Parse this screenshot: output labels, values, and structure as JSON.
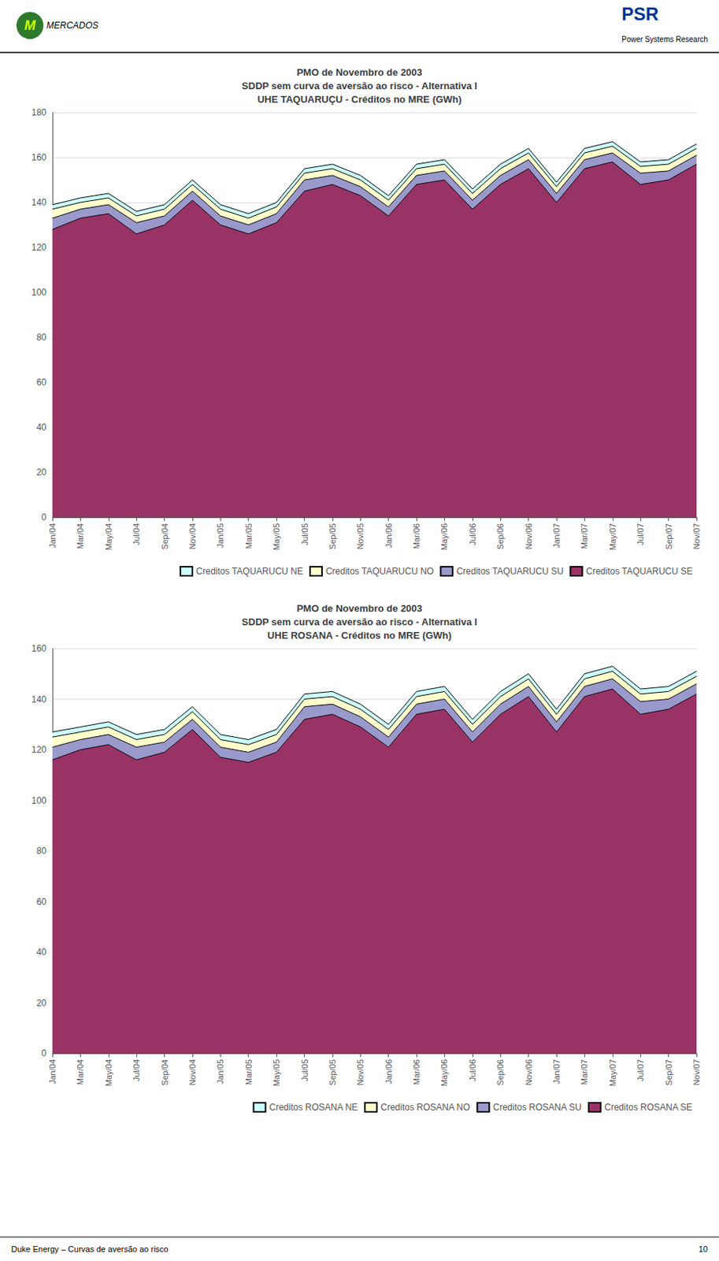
{
  "chart_data": [
    {
      "type": "area",
      "title": "PMO de Novembro de 2003\nSDDP sem curva de aversão ao risco - Alternativa I\nUHE TAQUARUÇU - Créditos no MRE (GWh)",
      "categories": [
        "Jan/04",
        "Mar/04",
        "May/04",
        "Jul/04",
        "Sep/04",
        "Nov/04",
        "Jan/05",
        "Mar/05",
        "May/05",
        "Jul/05",
        "Sep/05",
        "Nov/05",
        "Jan/06",
        "Mar/06",
        "May/06",
        "Jul/06",
        "Sep/06",
        "Nov/06",
        "Jan/07",
        "Mar/07",
        "May/07",
        "Jul/07",
        "Sep/07",
        "Nov/07"
      ],
      "series": [
        {
          "name": "Creditos TAQUARUCU SE",
          "color": "#993366",
          "values": [
            128,
            133,
            135,
            126,
            130,
            141,
            130,
            126,
            131,
            145,
            148,
            143,
            134,
            148,
            150,
            137,
            148,
            155,
            140,
            155,
            158,
            148,
            150,
            157
          ]
        },
        {
          "name": "Creditos TAQUARUCU SU",
          "color": "#9999cc",
          "values": [
            5,
            4,
            4,
            5,
            4,
            4,
            4,
            4,
            4,
            5,
            4,
            4,
            4,
            4,
            4,
            4,
            4,
            4,
            4,
            4,
            4,
            5,
            4,
            4
          ]
        },
        {
          "name": "Creditos TAQUARUCU NO",
          "color": "#ffffcc",
          "values": [
            4,
            3,
            3,
            3,
            3,
            3,
            3,
            3,
            3,
            3,
            3,
            3,
            3,
            3,
            3,
            3,
            3,
            3,
            3,
            3,
            3,
            3,
            3,
            3
          ]
        },
        {
          "name": "Creditos TAQUARUCU NE",
          "color": "#ccffff",
          "values": [
            2,
            2,
            2,
            2,
            2,
            2,
            2,
            2,
            2,
            2,
            2,
            2,
            2,
            2,
            2,
            2,
            2,
            2,
            2,
            2,
            2,
            2,
            2,
            2
          ]
        }
      ],
      "stacked": true,
      "ylim": [
        0,
        180
      ],
      "yticks": [
        0,
        20,
        40,
        60,
        80,
        100,
        120,
        140,
        160,
        180
      ],
      "grid": true,
      "legend": "lower right",
      "annotations": [
        "M",
        "MERCADOS",
        "PSR",
        "Power Systems Research"
      ]
    },
    {
      "type": "area",
      "title": "PMO de Novembro de 2003\nSDDP sem curva de aversão ao risco - Alternativa I\nUHE ROSANA - Créditos no MRE (GWh)",
      "categories": [
        "Jan/04",
        "Mar/04",
        "May/04",
        "Jul/04",
        "Sep/04",
        "Nov/04",
        "Jan/05",
        "Mar/05",
        "May/05",
        "Jul/05",
        "Sep/05",
        "Nov/05",
        "Jan/06",
        "Mar/06",
        "May/06",
        "Jul/06",
        "Sep/06",
        "Nov/06",
        "Jan/07",
        "Mar/07",
        "May/07",
        "Jul/07",
        "Sep/07",
        "Nov/07"
      ],
      "series": [
        {
          "name": "Creditos ROSANA SE",
          "color": "#993366",
          "values": [
            116,
            120,
            122,
            116,
            119,
            128,
            117,
            115,
            119,
            132,
            134,
            129,
            121,
            134,
            136,
            123,
            134,
            141,
            127,
            141,
            144,
            134,
            136,
            142
          ]
        },
        {
          "name": "Creditos ROSANA SU",
          "color": "#9999cc",
          "values": [
            5,
            4,
            4,
            5,
            4,
            4,
            4,
            4,
            4,
            5,
            4,
            4,
            4,
            4,
            4,
            4,
            4,
            4,
            4,
            4,
            4,
            5,
            4,
            4
          ]
        },
        {
          "name": "Creditos ROSANA NO",
          "color": "#ffffcc",
          "values": [
            4,
            3,
            3,
            3,
            3,
            3,
            3,
            3,
            3,
            3,
            3,
            3,
            3,
            3,
            3,
            3,
            3,
            3,
            3,
            3,
            3,
            3,
            3,
            3
          ]
        },
        {
          "name": "Creditos ROSANA NE",
          "color": "#ccffff",
          "values": [
            2,
            2,
            2,
            2,
            2,
            2,
            2,
            2,
            2,
            2,
            2,
            2,
            2,
            2,
            2,
            2,
            2,
            2,
            2,
            2,
            2,
            2,
            2,
            2
          ]
        }
      ],
      "stacked": true,
      "ylim": [
        0,
        160
      ],
      "yticks": [
        0,
        20,
        40,
        60,
        80,
        100,
        120,
        140,
        160
      ],
      "grid": true,
      "legend": "lower right",
      "annotations": [
        "Duke Energy – Curvas de aversão ao risco",
        "10"
      ]
    }
  ]
}
